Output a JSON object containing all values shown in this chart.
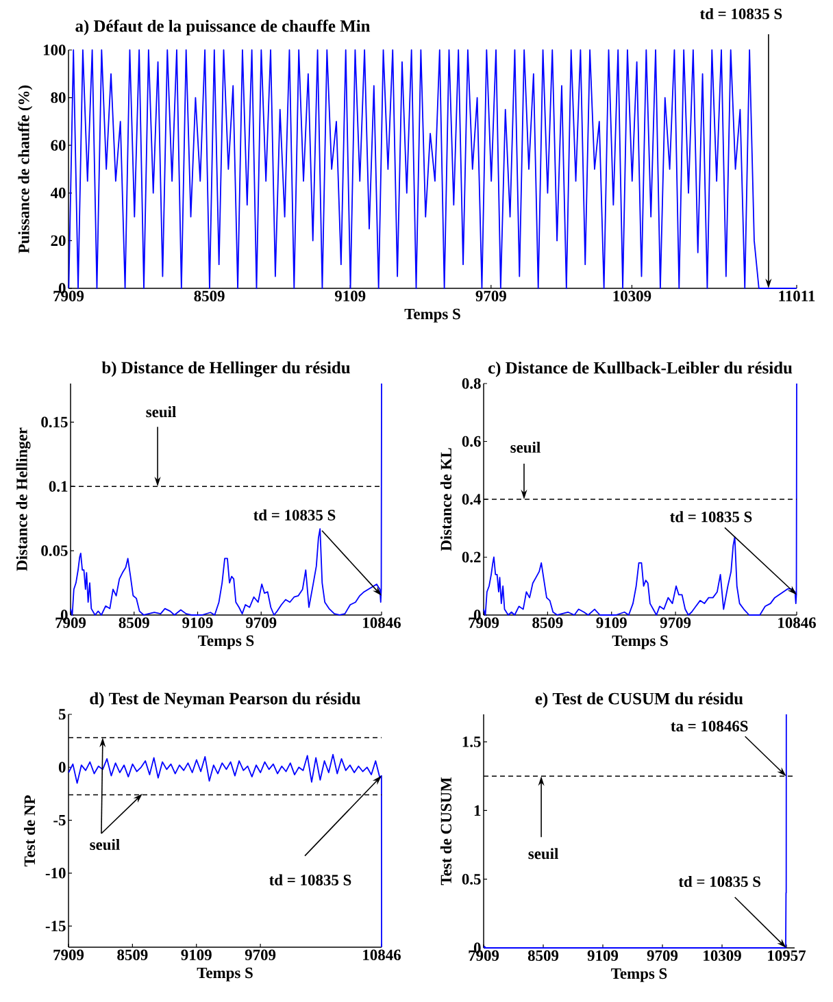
{
  "chart_data": [
    {
      "type": "line",
      "title": "a) Défaut de la puissance de chauffe Min",
      "xlabel": "Temps S",
      "ylabel": "Puissance de chauffe (%)",
      "xlim": [
        7909,
        11011
      ],
      "xticks": [
        7909,
        8509,
        9109,
        9709,
        10309,
        11011
      ],
      "ylim": [
        0,
        100
      ],
      "yticks": [
        0,
        20,
        40,
        60,
        80,
        100
      ],
      "series": [
        {
          "color": "#0000ff",
          "x": [
            7910,
            7930,
            7950,
            7970,
            7990,
            8010,
            8030,
            8050,
            8070,
            8090,
            8110,
            8130,
            8150,
            8170,
            8190,
            8210,
            8230,
            8250,
            8270,
            8290,
            8310,
            8330,
            8350,
            8370,
            8390,
            8410,
            8430,
            8450,
            8470,
            8490,
            8510,
            8530,
            8550,
            8570,
            8590,
            8610,
            8630,
            8650,
            8670,
            8690,
            8710,
            8730,
            8750,
            8770,
            8790,
            8810,
            8830,
            8850,
            8870,
            8890,
            8910,
            8930,
            8950,
            8970,
            8990,
            9010,
            9030,
            9050,
            9070,
            9090,
            9110,
            9130,
            9150,
            9170,
            9190,
            9210,
            9230,
            9250,
            9270,
            9290,
            9310,
            9330,
            9350,
            9370,
            9390,
            9410,
            9430,
            9450,
            9470,
            9490,
            9510,
            9530,
            9550,
            9570,
            9590,
            9610,
            9630,
            9650,
            9670,
            9690,
            9710,
            9730,
            9750,
            9770,
            9790,
            9810,
            9830,
            9850,
            9870,
            9890,
            9910,
            9930,
            9950,
            9970,
            9990,
            10010,
            10030,
            10050,
            10070,
            10090,
            10110,
            10130,
            10150,
            10170,
            10190,
            10210,
            10230,
            10250,
            10270,
            10290,
            10310,
            10330,
            10350,
            10370,
            10390,
            10410,
            10430,
            10450,
            10470,
            10490,
            10510,
            10530,
            10550,
            10570,
            10590,
            10610,
            10630,
            10650,
            10670,
            10690,
            10710,
            10730,
            10750,
            10770,
            10790,
            10810,
            10830,
            10850,
            11011
          ],
          "values": [
            0,
            100,
            0,
            100,
            45,
            100,
            0,
            100,
            50,
            90,
            45,
            70,
            0,
            100,
            30,
            100,
            0,
            100,
            40,
            95,
            5,
            100,
            45,
            100,
            0,
            100,
            30,
            80,
            45,
            100,
            0,
            100,
            10,
            100,
            50,
            85,
            0,
            100,
            35,
            100,
            0,
            100,
            45,
            100,
            5,
            75,
            30,
            100,
            0,
            100,
            45,
            90,
            20,
            100,
            0,
            100,
            50,
            70,
            10,
            100,
            0,
            100,
            45,
            100,
            25,
            85,
            0,
            100,
            50,
            100,
            5,
            95,
            40,
            100,
            0,
            100,
            30,
            65,
            45,
            100,
            0,
            100,
            35,
            100,
            10,
            100,
            50,
            80,
            0,
            100,
            45,
            100,
            0,
            75,
            30,
            100,
            5,
            100,
            50,
            90,
            0,
            100,
            40,
            100,
            20,
            85,
            0,
            100,
            45,
            100,
            10,
            100,
            50,
            70,
            0,
            100,
            35,
            100,
            0,
            100,
            45,
            95,
            5,
            100,
            30,
            100,
            0,
            80,
            50,
            100,
            0,
            100,
            40,
            100,
            15,
            90,
            0,
            100,
            45,
            100,
            5,
            100,
            50,
            75,
            0,
            100,
            20,
            0,
            0
          ]
        }
      ],
      "annotations": [
        {
          "text": "td = 10835 S",
          "x": 10891,
          "y": 0
        }
      ]
    },
    {
      "type": "line",
      "title": "b) Distance de Hellinger du résidu",
      "xlabel": "Temps S",
      "ylabel": "Distance de Hellinger",
      "xlim": [
        7909,
        10846
      ],
      "xticks": [
        7909,
        8509,
        9109,
        9709,
        10846
      ],
      "ylim": [
        0,
        0.18
      ],
      "yticks": [
        0,
        0.05,
        0.1,
        0.15
      ],
      "series": [
        {
          "color": "#0000ff",
          "x": [
            7909,
            7925,
            7940,
            7960,
            7980,
            7995,
            8005,
            8020,
            8035,
            8050,
            8060,
            8075,
            8090,
            8105,
            8140,
            8170,
            8200,
            8240,
            8280,
            8310,
            8340,
            8370,
            8400,
            8430,
            8450,
            8475,
            8500,
            8530,
            8560,
            8600,
            8700,
            8760,
            8800,
            8850,
            8890,
            8950,
            9000,
            9050,
            9150,
            9230,
            9270,
            9310,
            9340,
            9365,
            9390,
            9410,
            9430,
            9450,
            9470,
            9500,
            9530,
            9560,
            9600,
            9640,
            9680,
            9715,
            9740,
            9770,
            9800,
            9830,
            9860,
            9900,
            9940,
            9980,
            10020,
            10060,
            10100,
            10130,
            10160,
            10200,
            10230,
            10250,
            10265,
            10285,
            10310,
            10350,
            10400,
            10450,
            10500,
            10550,
            10600,
            10640,
            10680,
            10720,
            10760,
            10800,
            10830,
            10838,
            10843,
            10846
          ],
          "values": [
            0.005,
            0.0,
            0.02,
            0.025,
            0.035,
            0.045,
            0.048,
            0.035,
            0.035,
            0.02,
            0.033,
            0.01,
            0.025,
            0.005,
            0.0,
            0.003,
            0.0,
            0.007,
            0.005,
            0.02,
            0.015,
            0.028,
            0.033,
            0.037,
            0.044,
            0.03,
            0.015,
            0.013,
            0.003,
            0.0,
            0.002,
            0.001,
            0.005,
            0.003,
            0.0,
            0.004,
            0.001,
            0.0,
            0.0,
            0.002,
            0.0,
            0.01,
            0.025,
            0.044,
            0.044,
            0.025,
            0.03,
            0.028,
            0.01,
            0.006,
            0.001,
            0.008,
            0.006,
            0.014,
            0.01,
            0.024,
            0.017,
            0.018,
            0.006,
            0.0,
            0.003,
            0.008,
            0.012,
            0.01,
            0.014,
            0.015,
            0.02,
            0.035,
            0.006,
            0.024,
            0.038,
            0.06,
            0.067,
            0.025,
            0.01,
            0.005,
            0.001,
            0.0,
            0.001,
            0.008,
            0.01,
            0.015,
            0.018,
            0.02,
            0.022,
            0.024,
            0.02,
            0.01,
            0.02,
            0.18
          ]
        }
      ],
      "ref_lines": [
        {
          "axis": "y",
          "value": 0.1,
          "line_style": "dashed"
        }
      ],
      "annotations": [
        {
          "text": "seuil",
          "x": 8731,
          "y": 0.1
        },
        {
          "text": "td = 10835 S",
          "x": 10846,
          "y": 0.015
        }
      ]
    },
    {
      "type": "line",
      "title": "c) Distance de Kullback-Leibler du résidu",
      "xlabel": "Temps S",
      "ylabel": "Distance de KL",
      "xlim": [
        7909,
        10846
      ],
      "xticks": [
        7909,
        8509,
        9109,
        9709,
        10846
      ],
      "ylim": [
        0,
        0.8
      ],
      "yticks": [
        0,
        0.2,
        0.4,
        0.6,
        0.8
      ],
      "series": [
        {
          "color": "#0000ff",
          "x": [
            7909,
            7925,
            7940,
            7960,
            7980,
            7995,
            8005,
            8020,
            8035,
            8050,
            8060,
            8075,
            8090,
            8105,
            8140,
            8170,
            8200,
            8240,
            8280,
            8310,
            8340,
            8370,
            8400,
            8430,
            8450,
            8475,
            8500,
            8530,
            8560,
            8600,
            8700,
            8760,
            8800,
            8850,
            8890,
            8950,
            9000,
            9050,
            9150,
            9230,
            9270,
            9310,
            9340,
            9365,
            9390,
            9410,
            9430,
            9450,
            9470,
            9500,
            9530,
            9560,
            9600,
            9640,
            9680,
            9715,
            9740,
            9770,
            9800,
            9830,
            9860,
            9900,
            9940,
            9980,
            10020,
            10060,
            10100,
            10130,
            10160,
            10200,
            10230,
            10250,
            10265,
            10285,
            10310,
            10350,
            10400,
            10450,
            10500,
            10550,
            10600,
            10640,
            10680,
            10720,
            10760,
            10800,
            10830,
            10838,
            10843,
            10846
          ],
          "values": [
            0.02,
            0.0,
            0.08,
            0.1,
            0.14,
            0.18,
            0.2,
            0.14,
            0.14,
            0.08,
            0.13,
            0.04,
            0.1,
            0.02,
            0.0,
            0.01,
            0.0,
            0.03,
            0.02,
            0.08,
            0.06,
            0.11,
            0.13,
            0.15,
            0.18,
            0.12,
            0.06,
            0.05,
            0.01,
            0.0,
            0.01,
            0.0,
            0.02,
            0.01,
            0.0,
            0.02,
            0.0,
            0.0,
            0.0,
            0.01,
            0.0,
            0.04,
            0.1,
            0.18,
            0.18,
            0.1,
            0.12,
            0.11,
            0.04,
            0.02,
            0.0,
            0.03,
            0.02,
            0.06,
            0.04,
            0.1,
            0.07,
            0.07,
            0.02,
            0.0,
            0.01,
            0.03,
            0.05,
            0.04,
            0.06,
            0.06,
            0.08,
            0.14,
            0.02,
            0.1,
            0.15,
            0.24,
            0.27,
            0.1,
            0.04,
            0.02,
            0.0,
            0.0,
            0.0,
            0.03,
            0.04,
            0.06,
            0.07,
            0.08,
            0.09,
            0.09,
            0.08,
            0.04,
            0.07,
            0.8
          ]
        }
      ],
      "ref_lines": [
        {
          "axis": "y",
          "value": 0.4,
          "line_style": "dashed"
        }
      ],
      "annotations": [
        {
          "text": "seuil",
          "x": 8288,
          "y": 0.4
        },
        {
          "text": "td = 10835 S",
          "x": 10846,
          "y": 0.07
        }
      ]
    },
    {
      "type": "line",
      "title": "d) Test de Neyman Pearson du résidu",
      "xlabel": "Temps S",
      "ylabel": "Test de NP",
      "xlim": [
        7909,
        10846
      ],
      "xticks": [
        7909,
        8509,
        9109,
        9709,
        10846
      ],
      "ylim": [
        -17,
        5
      ],
      "yticks": [
        -15,
        -10,
        -5,
        0,
        5
      ],
      "series": [
        {
          "color": "#0000ff",
          "x": [
            7910,
            7950,
            7990,
            8030,
            8070,
            8110,
            8150,
            8190,
            8230,
            8270,
            8310,
            8350,
            8390,
            8430,
            8470,
            8510,
            8550,
            8590,
            8630,
            8670,
            8710,
            8750,
            8790,
            8830,
            8870,
            8910,
            8950,
            8990,
            9030,
            9070,
            9110,
            9150,
            9190,
            9230,
            9270,
            9310,
            9350,
            9390,
            9430,
            9470,
            9510,
            9550,
            9590,
            9630,
            9670,
            9710,
            9750,
            9790,
            9830,
            9870,
            9910,
            9950,
            9990,
            10030,
            10070,
            10110,
            10150,
            10190,
            10230,
            10270,
            10310,
            10350,
            10390,
            10430,
            10470,
            10510,
            10550,
            10590,
            10630,
            10670,
            10710,
            10750,
            10790,
            10830,
            10845,
            10846
          ],
          "values": [
            -0.5,
            0.3,
            -1.5,
            0.2,
            -0.3,
            0.5,
            -0.6,
            0.1,
            -0.2,
            0.8,
            -0.8,
            0.4,
            -0.5,
            0.2,
            -0.9,
            0.3,
            -0.4,
            0.0,
            0.6,
            -0.7,
            0.9,
            -1.0,
            0.5,
            -0.2,
            0.3,
            -0.6,
            0.2,
            -0.3,
            0.4,
            -0.5,
            0.7,
            -0.4,
            1.0,
            -1.3,
            0.2,
            -0.6,
            0.4,
            -0.2,
            0.5,
            -0.8,
            0.6,
            -0.3,
            0.1,
            -0.9,
            0.2,
            -0.5,
            0.5,
            -0.2,
            0.3,
            -0.6,
            0.1,
            -0.4,
            0.4,
            -0.7,
            0.0,
            -0.3,
            1.1,
            -1.4,
            0.9,
            -1.2,
            0.6,
            -0.5,
            1.2,
            -0.6,
            0.8,
            -0.3,
            0.2,
            -0.5,
            0.1,
            -0.4,
            0.0,
            -0.7,
            0.6,
            -1.0,
            -0.8,
            -17
          ]
        }
      ],
      "ref_lines": [
        {
          "axis": "y",
          "value": 2.8,
          "line_style": "dashed"
        },
        {
          "axis": "y",
          "value": -2.6,
          "line_style": "dashed"
        }
      ],
      "annotations": [
        {
          "text": "seuil",
          "x": 8230,
          "y": 2.8
        },
        {
          "text": "td = 10835 S",
          "x": 10846,
          "y": -0.8
        }
      ]
    },
    {
      "type": "line",
      "title": "e) Test de CUSUM du résidu",
      "xlabel": "Temps S",
      "ylabel": "Test de CUSUM",
      "xlim": [
        7909,
        11040
      ],
      "xticks": [
        7909,
        8509,
        9109,
        9709,
        10309,
        10957
      ],
      "ylim": [
        0,
        1.7
      ],
      "yticks": [
        0,
        0.5,
        1,
        1.5
      ],
      "series": [
        {
          "color": "#0000ff",
          "x": [
            7909,
            7920,
            7925,
            10950,
            10953,
            10955,
            10956
          ],
          "values": [
            0,
            0.01,
            0,
            0,
            0.4,
            0.4,
            1.7
          ]
        }
      ],
      "ref_lines": [
        {
          "axis": "y",
          "value": 1.25,
          "line_style": "dashed"
        }
      ],
      "annotations": [
        {
          "text": "seuil",
          "x": 8489,
          "y": 1.25
        },
        {
          "text": "ta = 10846S",
          "x": 10955,
          "y": 1.25
        },
        {
          "text": "td = 10835 S",
          "x": 10955,
          "y": 0
        }
      ]
    }
  ]
}
